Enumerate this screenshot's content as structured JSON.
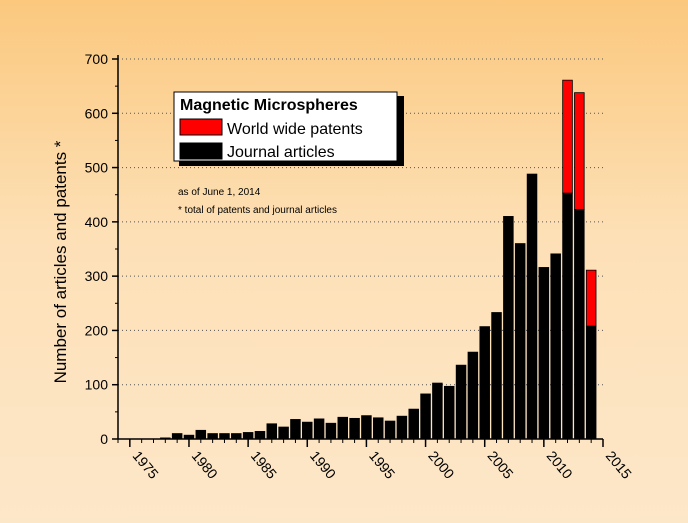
{
  "chart_data": {
    "type": "bar",
    "stacked": true,
    "title": "Magnetic Microspheres",
    "ylabel": "Number of articles and patents *",
    "xlabel": "",
    "ylim": [
      0,
      700
    ],
    "xlim": [
      1974,
      2015
    ],
    "yticks": [
      0,
      100,
      200,
      300,
      400,
      500,
      600,
      700
    ],
    "xticks": [
      1975,
      1980,
      1985,
      1990,
      1995,
      2000,
      2005,
      2010,
      2015
    ],
    "grid": "horizontal dotted",
    "legend_position": "top-left",
    "annotations": [
      "as of June 1, 2014",
      "* total of patents and journal articles"
    ],
    "x": [
      1978,
      1979,
      1980,
      1981,
      1982,
      1983,
      1984,
      1985,
      1986,
      1987,
      1988,
      1989,
      1990,
      1991,
      1992,
      1993,
      1994,
      1995,
      1996,
      1997,
      1998,
      1999,
      2000,
      2001,
      2002,
      2003,
      2004,
      2005,
      2006,
      2007,
      2008,
      2009,
      2010,
      2011,
      2012,
      2013,
      2014
    ],
    "series": [
      {
        "name": "Journal articles",
        "color": "#000000",
        "values": [
          2,
          10,
          7,
          16,
          10,
          10,
          10,
          12,
          14,
          28,
          22,
          36,
          31,
          37,
          29,
          40,
          38,
          43,
          39,
          33,
          42,
          55,
          83,
          103,
          97,
          136,
          160,
          207,
          233,
          410,
          360,
          488,
          316,
          341,
          453,
          423,
          208
        ]
      },
      {
        "name": "World wide patents",
        "color": "#ff0000",
        "values": [
          0,
          0,
          0,
          0,
          0,
          0,
          0,
          0,
          0,
          0,
          0,
          0,
          0,
          0,
          0,
          0,
          0,
          0,
          0,
          0,
          0,
          0,
          0,
          0,
          0,
          0,
          0,
          0,
          0,
          0,
          0,
          0,
          0,
          0,
          208,
          215,
          103
        ]
      }
    ]
  }
}
